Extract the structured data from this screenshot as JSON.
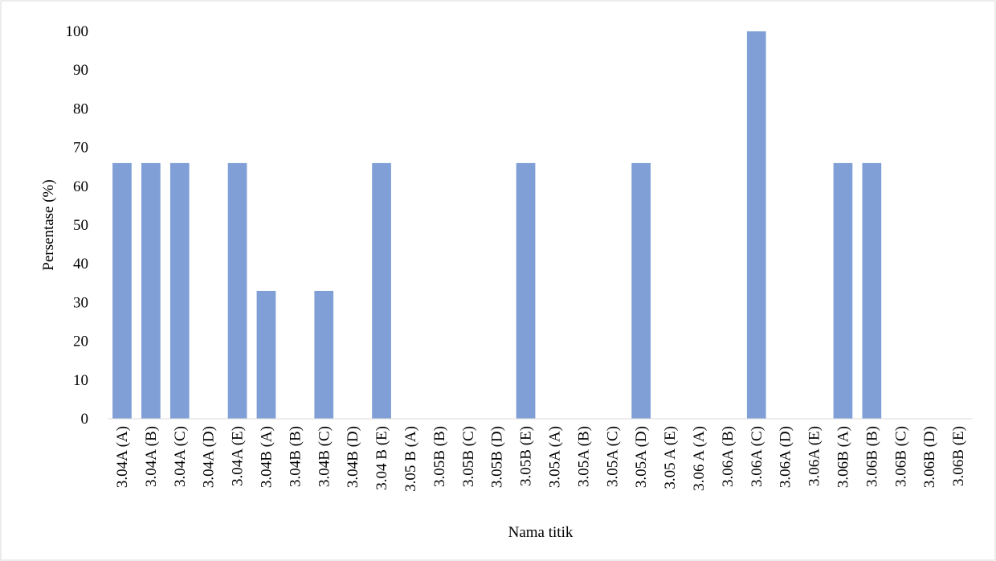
{
  "chart_data": {
    "type": "bar",
    "xlabel": "Nama titik",
    "ylabel": "Persentase (%)",
    "categories": [
      "3.04A (A)",
      "3.04A (B)",
      "3.04A (C)",
      "3.04A (D)",
      "3.04A (E)",
      "3.04B (A)",
      "3.04B (B)",
      "3.04B (C)",
      "3.04B (D)",
      "3.04 B (E)",
      "3.05 B (A)",
      "3.05B (B)",
      "3.05B (C)",
      "3.05B (D)",
      "3.05B (E)",
      "3.05A (A)",
      "3.05A (B)",
      "3.05A (C)",
      "3.05A (D)",
      "3.05 A (E)",
      "3.06 A (A)",
      "3.06A (B)",
      "3.06A (C)",
      "3.06A (D)",
      "3.06A (E)",
      "3.06B (A)",
      "3.06B (B)",
      "3.06B (C)",
      "3.06B (D)",
      "3.06B (E)"
    ],
    "values": [
      66,
      66,
      66,
      0,
      66,
      33,
      0,
      33,
      0,
      66,
      0,
      0,
      0,
      0,
      66,
      0,
      0,
      0,
      66,
      0,
      0,
      0,
      100,
      0,
      0,
      66,
      66,
      0,
      0,
      0
    ],
    "color": "#7f9fd6",
    "ylim": [
      0,
      100
    ],
    "yticks": [
      0,
      10,
      20,
      30,
      40,
      50,
      60,
      70,
      80,
      90,
      100
    ]
  }
}
